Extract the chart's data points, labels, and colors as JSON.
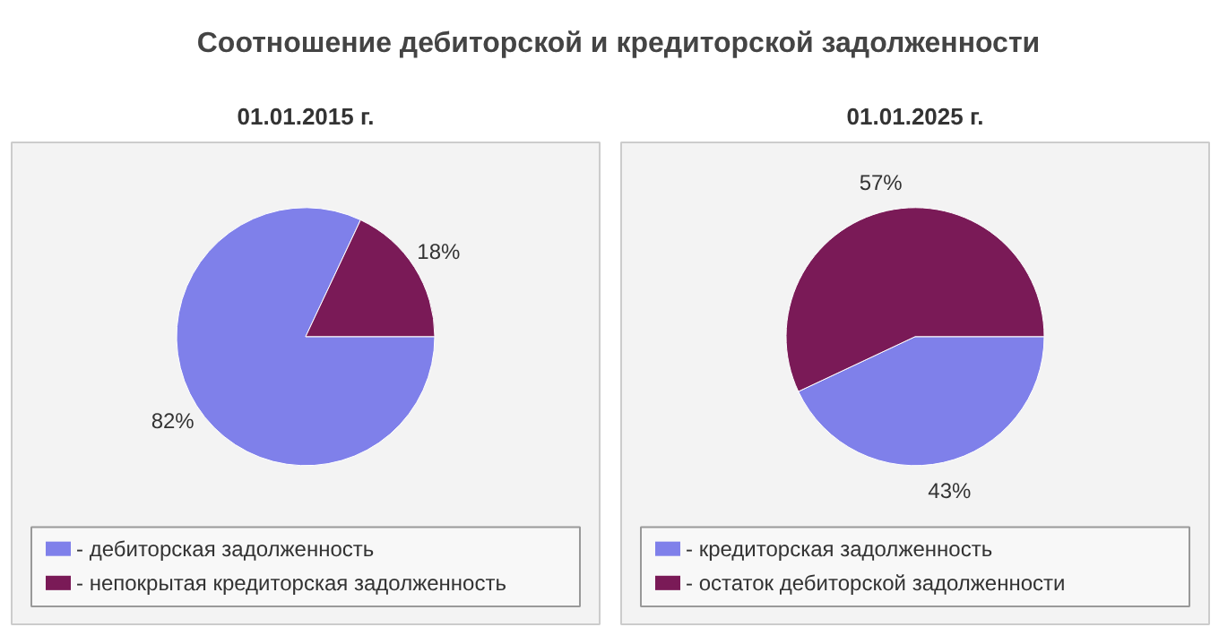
{
  "chart_data": [
    {
      "type": "pie",
      "title": "01.01.2015 г.",
      "annotations": [
        "Соотношение дебиторской и кредиторской задолженности"
      ],
      "categories": [
        "- дебиторская задолженность",
        "- непокрытая кредиторская задолженность"
      ],
      "values": [
        82,
        18
      ],
      "colors": [
        "#7f80ea",
        "#7a1a57"
      ],
      "value_labels": [
        "82%",
        "18%"
      ],
      "legend": "bottom"
    },
    {
      "type": "pie",
      "title": "01.01.2025 г.",
      "categories": [
        "- кредиторская задолженность",
        "- остаток дебиторской задолженности"
      ],
      "values": [
        43,
        57
      ],
      "colors": [
        "#7f80ea",
        "#7a1a57"
      ],
      "value_labels": [
        "43%",
        "57%"
      ],
      "legend": "bottom"
    }
  ]
}
